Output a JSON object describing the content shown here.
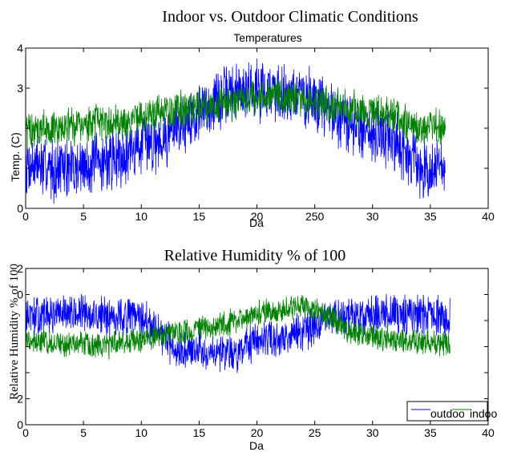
{
  "figure": {
    "title": "Indoor vs. Outdoor Climatic Conditions"
  },
  "chart_data": [
    {
      "type": "line",
      "title": "Temperatures",
      "xlabel": "Da",
      "ylabel": "Temp. (C)",
      "xlim": [
        0,
        40
      ],
      "ylim": [
        0,
        4
      ],
      "x_tick_labels": [
        "0",
        "5",
        "10",
        "15",
        "20",
        "250",
        "30",
        "35",
        "40"
      ],
      "y_tick_labels": [
        "0",
        "",
        "",
        "3",
        "4"
      ],
      "grid": false,
      "series": [
        {
          "color": "#0000ff",
          "x": [
            0,
            2,
            4,
            6,
            8,
            10,
            12,
            14,
            16,
            18,
            20,
            22,
            24,
            26,
            28,
            30,
            32,
            34,
            36.3
          ],
          "y": [
            1.15,
            1.0,
            1.0,
            1.1,
            1.3,
            1.6,
            1.8,
            2.2,
            2.6,
            2.9,
            3.0,
            2.9,
            2.8,
            2.5,
            2.1,
            1.9,
            1.7,
            1.0,
            1.0
          ]
        },
        {
          "color": "#008000",
          "x": [
            0,
            2,
            4,
            6,
            8,
            10,
            12,
            14,
            16,
            18,
            20,
            22,
            24,
            26,
            28,
            30,
            32,
            34,
            36.3
          ],
          "y": [
            1.95,
            2.0,
            2.05,
            2.1,
            2.15,
            2.3,
            2.4,
            2.5,
            2.6,
            2.7,
            2.75,
            2.8,
            2.7,
            2.6,
            2.5,
            2.4,
            2.3,
            2.0,
            2.0
          ]
        }
      ]
    },
    {
      "type": "line",
      "title": "Relative Humidity % of 100",
      "xlabel": "Da",
      "ylabel": "Relative Humidity % of 100",
      "xlim": [
        0,
        40
      ],
      "ylim": [
        0,
        120
      ],
      "x_tick_labels": [
        "0",
        "5",
        "10",
        "15",
        "20",
        "25",
        "30",
        "35",
        "40"
      ],
      "y_tick_labels": [
        "0",
        "2",
        "",
        "",
        "",
        "0",
        "2"
      ],
      "grid": false,
      "legend_position": "bottom-right",
      "series": [
        {
          "name": "outdoo",
          "color": "#0000ff",
          "x": [
            0,
            2,
            4,
            6,
            8,
            10,
            12,
            14,
            16,
            18,
            20,
            22,
            24,
            26,
            28,
            30,
            32,
            34,
            36.7
          ],
          "y": [
            82,
            84,
            85,
            84,
            83,
            82,
            65,
            55,
            58,
            55,
            62,
            68,
            70,
            80,
            84,
            85,
            85,
            84,
            82
          ]
        },
        {
          "name": "indoo",
          "color": "#008000",
          "x": [
            0,
            2,
            4,
            6,
            8,
            10,
            12,
            14,
            16,
            18,
            20,
            22,
            24,
            26,
            28,
            30,
            32,
            34,
            36.7
          ],
          "y": [
            65,
            63,
            62,
            60,
            62,
            65,
            70,
            72,
            75,
            80,
            85,
            88,
            92,
            85,
            72,
            68,
            65,
            63,
            62
          ]
        }
      ]
    }
  ]
}
